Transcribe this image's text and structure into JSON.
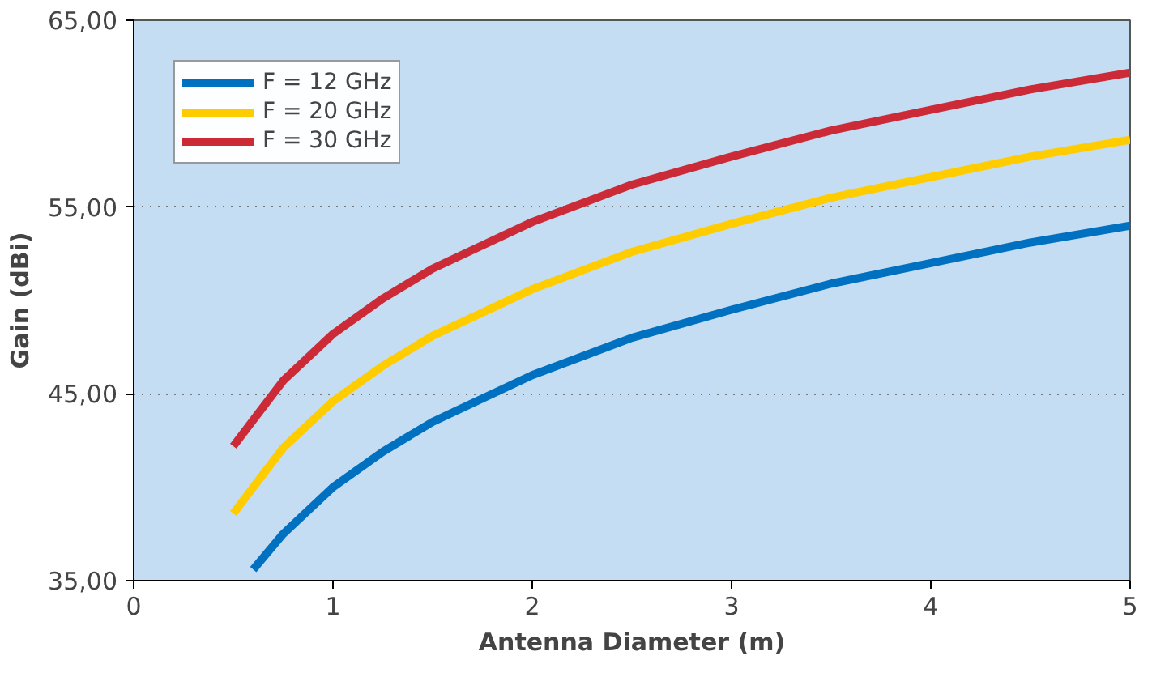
{
  "chart_data": {
    "type": "line",
    "xlabel": "Antenna Diameter (m)",
    "ylabel": "Gain (dBi)",
    "xlim": [
      0,
      5
    ],
    "xticks": [
      0,
      1,
      2,
      3,
      4,
      5
    ],
    "ylim": [
      35,
      65
    ],
    "yticks": [
      {
        "value": 35,
        "label": "35,00"
      },
      {
        "value": 45,
        "label": "45,00"
      },
      {
        "value": 55,
        "label": "55,00"
      },
      {
        "value": 65,
        "label": "65,00"
      }
    ],
    "grid": "y",
    "legend": "top left",
    "marker": "none",
    "line_style": "solid",
    "series": [
      {
        "name": "F = 12 GHz",
        "color": "#0070c0",
        "x": [
          0.6,
          0.75,
          1,
          1.25,
          1.5,
          2,
          2.5,
          3,
          3.5,
          4,
          4.5,
          5
        ],
        "values": [
          35.6,
          37.5,
          40.0,
          41.9,
          43.5,
          46.0,
          48.0,
          49.5,
          50.9,
          52.0,
          53.1,
          54.0
        ]
      },
      {
        "name": "F = 20 GHz",
        "color": "#ffcc00",
        "x": [
          0.5,
          0.75,
          1,
          1.25,
          1.5,
          2,
          2.5,
          3,
          3.5,
          4,
          4.5,
          5
        ],
        "values": [
          38.6,
          42.1,
          44.6,
          46.5,
          48.1,
          50.6,
          52.6,
          54.1,
          55.5,
          56.6,
          57.7,
          58.6
        ]
      },
      {
        "name": "F = 30 GHz",
        "color": "#cc2a36",
        "x": [
          0.5,
          0.75,
          1,
          1.25,
          1.5,
          2,
          2.5,
          3,
          3.5,
          4,
          4.5,
          5
        ],
        "values": [
          42.2,
          45.7,
          48.2,
          50.1,
          51.7,
          54.2,
          56.2,
          57.7,
          59.1,
          60.2,
          61.3,
          62.2
        ]
      }
    ]
  }
}
